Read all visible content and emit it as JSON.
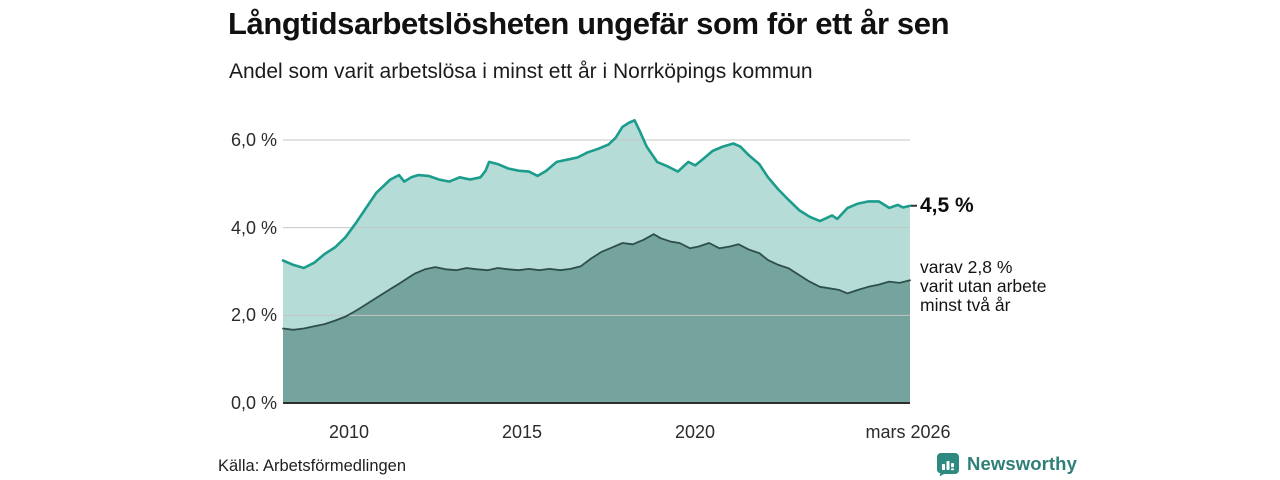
{
  "title": "Långtidsarbetslösheten ungefär som för ett år sen",
  "subtitle": "Andel som varit arbetslösa i minst ett år i Norrköpings kommun",
  "source": "Källa: Arbetsförmedlingen",
  "brand": {
    "name": "Newsworthy",
    "color": "#2e7f78"
  },
  "annotations": {
    "end_value_label": "4,5 %",
    "secondary_label_lines": [
      "varav 2,8 %",
      "varit utan arbete",
      "minst två år"
    ]
  },
  "chart_data": {
    "type": "area",
    "title": "Långtidsarbetslösheten ungefär som för ett år sen",
    "subtitle": "Andel som varit arbetslösa i minst ett år i Norrköpings kommun",
    "grid": true,
    "legend_position": "none",
    "colors": {
      "gridline": "#c4c6c5",
      "baseline": "#2f2f2f",
      "background": "#ffffff"
    },
    "x_axis": {
      "range": [
        2008.1,
        2026.2
      ],
      "ticks": [
        {
          "t": 2010,
          "label": "2010"
        },
        {
          "t": 2015,
          "label": "2015"
        },
        {
          "t": 2020,
          "label": "2020"
        },
        {
          "t": 2026.2,
          "label": "mars 2026"
        }
      ]
    },
    "y_axis": {
      "range": [
        0,
        6.6
      ],
      "unit": "%",
      "ticks": [
        {
          "v": 6,
          "label": "6,0 %"
        },
        {
          "v": 4,
          "label": "4,0 %"
        },
        {
          "v": 2,
          "label": "2,0 %"
        },
        {
          "v": 0,
          "label": "0,0 %"
        }
      ]
    },
    "series": [
      {
        "name": "arbetslösa i minst ett år",
        "end_value": 4.5,
        "end_label": "4,5 %",
        "line_color": "#1b9c8c",
        "fill_color": "#b5dcd6",
        "line_width": 2.6,
        "points": [
          [
            2008.1,
            3.25
          ],
          [
            2008.4,
            3.15
          ],
          [
            2008.7,
            3.08
          ],
          [
            2009.0,
            3.2
          ],
          [
            2009.3,
            3.4
          ],
          [
            2009.6,
            3.55
          ],
          [
            2009.9,
            3.78
          ],
          [
            2010.2,
            4.1
          ],
          [
            2010.5,
            4.45
          ],
          [
            2010.8,
            4.8
          ],
          [
            2011.0,
            4.95
          ],
          [
            2011.2,
            5.1
          ],
          [
            2011.45,
            5.2
          ],
          [
            2011.6,
            5.05
          ],
          [
            2011.8,
            5.15
          ],
          [
            2012.0,
            5.2
          ],
          [
            2012.3,
            5.18
          ],
          [
            2012.6,
            5.1
          ],
          [
            2012.9,
            5.05
          ],
          [
            2013.2,
            5.15
          ],
          [
            2013.5,
            5.1
          ],
          [
            2013.8,
            5.15
          ],
          [
            2013.95,
            5.3
          ],
          [
            2014.05,
            5.5
          ],
          [
            2014.3,
            5.45
          ],
          [
            2014.6,
            5.35
          ],
          [
            2014.9,
            5.3
          ],
          [
            2015.2,
            5.28
          ],
          [
            2015.45,
            5.18
          ],
          [
            2015.7,
            5.3
          ],
          [
            2016.0,
            5.5
          ],
          [
            2016.3,
            5.55
          ],
          [
            2016.6,
            5.6
          ],
          [
            2016.9,
            5.72
          ],
          [
            2017.2,
            5.8
          ],
          [
            2017.5,
            5.9
          ],
          [
            2017.7,
            6.05
          ],
          [
            2017.9,
            6.3
          ],
          [
            2018.1,
            6.4
          ],
          [
            2018.25,
            6.45
          ],
          [
            2018.4,
            6.2
          ],
          [
            2018.6,
            5.85
          ],
          [
            2018.9,
            5.5
          ],
          [
            2019.2,
            5.4
          ],
          [
            2019.5,
            5.28
          ],
          [
            2019.8,
            5.5
          ],
          [
            2020.0,
            5.42
          ],
          [
            2020.2,
            5.55
          ],
          [
            2020.5,
            5.75
          ],
          [
            2020.8,
            5.85
          ],
          [
            2021.1,
            5.92
          ],
          [
            2021.3,
            5.85
          ],
          [
            2021.55,
            5.65
          ],
          [
            2021.85,
            5.45
          ],
          [
            2022.1,
            5.15
          ],
          [
            2022.4,
            4.87
          ],
          [
            2022.7,
            4.63
          ],
          [
            2023.0,
            4.4
          ],
          [
            2023.3,
            4.25
          ],
          [
            2023.6,
            4.15
          ],
          [
            2023.95,
            4.28
          ],
          [
            2024.1,
            4.2
          ],
          [
            2024.4,
            4.45
          ],
          [
            2024.7,
            4.55
          ],
          [
            2025.0,
            4.6
          ],
          [
            2025.3,
            4.6
          ],
          [
            2025.6,
            4.45
          ],
          [
            2025.85,
            4.52
          ],
          [
            2026.0,
            4.46
          ],
          [
            2026.2,
            4.5
          ]
        ]
      },
      {
        "name": "varav varit utan arbete minst två år",
        "end_value": 2.8,
        "end_label": "varav 2,8 %",
        "line_color": "#2e4f4c",
        "fill_color": "#74a49d",
        "line_width": 1.8,
        "points": [
          [
            2008.1,
            1.7
          ],
          [
            2008.4,
            1.67
          ],
          [
            2008.7,
            1.7
          ],
          [
            2009.0,
            1.75
          ],
          [
            2009.3,
            1.8
          ],
          [
            2009.6,
            1.88
          ],
          [
            2009.9,
            1.97
          ],
          [
            2010.2,
            2.1
          ],
          [
            2010.5,
            2.25
          ],
          [
            2010.8,
            2.4
          ],
          [
            2011.0,
            2.5
          ],
          [
            2011.2,
            2.6
          ],
          [
            2011.45,
            2.72
          ],
          [
            2011.7,
            2.85
          ],
          [
            2011.9,
            2.95
          ],
          [
            2012.2,
            3.05
          ],
          [
            2012.5,
            3.1
          ],
          [
            2012.8,
            3.05
          ],
          [
            2013.1,
            3.03
          ],
          [
            2013.4,
            3.08
          ],
          [
            2013.7,
            3.05
          ],
          [
            2014.0,
            3.03
          ],
          [
            2014.3,
            3.08
          ],
          [
            2014.6,
            3.05
          ],
          [
            2014.9,
            3.03
          ],
          [
            2015.2,
            3.06
          ],
          [
            2015.5,
            3.03
          ],
          [
            2015.8,
            3.06
          ],
          [
            2016.1,
            3.03
          ],
          [
            2016.4,
            3.06
          ],
          [
            2016.7,
            3.12
          ],
          [
            2017.0,
            3.3
          ],
          [
            2017.3,
            3.45
          ],
          [
            2017.6,
            3.55
          ],
          [
            2017.9,
            3.65
          ],
          [
            2018.2,
            3.62
          ],
          [
            2018.5,
            3.72
          ],
          [
            2018.8,
            3.85
          ],
          [
            2019.0,
            3.76
          ],
          [
            2019.3,
            3.68
          ],
          [
            2019.55,
            3.65
          ],
          [
            2019.85,
            3.53
          ],
          [
            2020.1,
            3.57
          ],
          [
            2020.4,
            3.65
          ],
          [
            2020.7,
            3.53
          ],
          [
            2021.0,
            3.57
          ],
          [
            2021.25,
            3.62
          ],
          [
            2021.55,
            3.5
          ],
          [
            2021.85,
            3.42
          ],
          [
            2022.1,
            3.26
          ],
          [
            2022.4,
            3.15
          ],
          [
            2022.7,
            3.07
          ],
          [
            2023.0,
            2.92
          ],
          [
            2023.3,
            2.77
          ],
          [
            2023.6,
            2.65
          ],
          [
            2023.85,
            2.62
          ],
          [
            2024.15,
            2.58
          ],
          [
            2024.4,
            2.5
          ],
          [
            2024.7,
            2.58
          ],
          [
            2025.0,
            2.65
          ],
          [
            2025.3,
            2.7
          ],
          [
            2025.6,
            2.77
          ],
          [
            2025.9,
            2.74
          ],
          [
            2026.2,
            2.8
          ]
        ]
      }
    ]
  }
}
